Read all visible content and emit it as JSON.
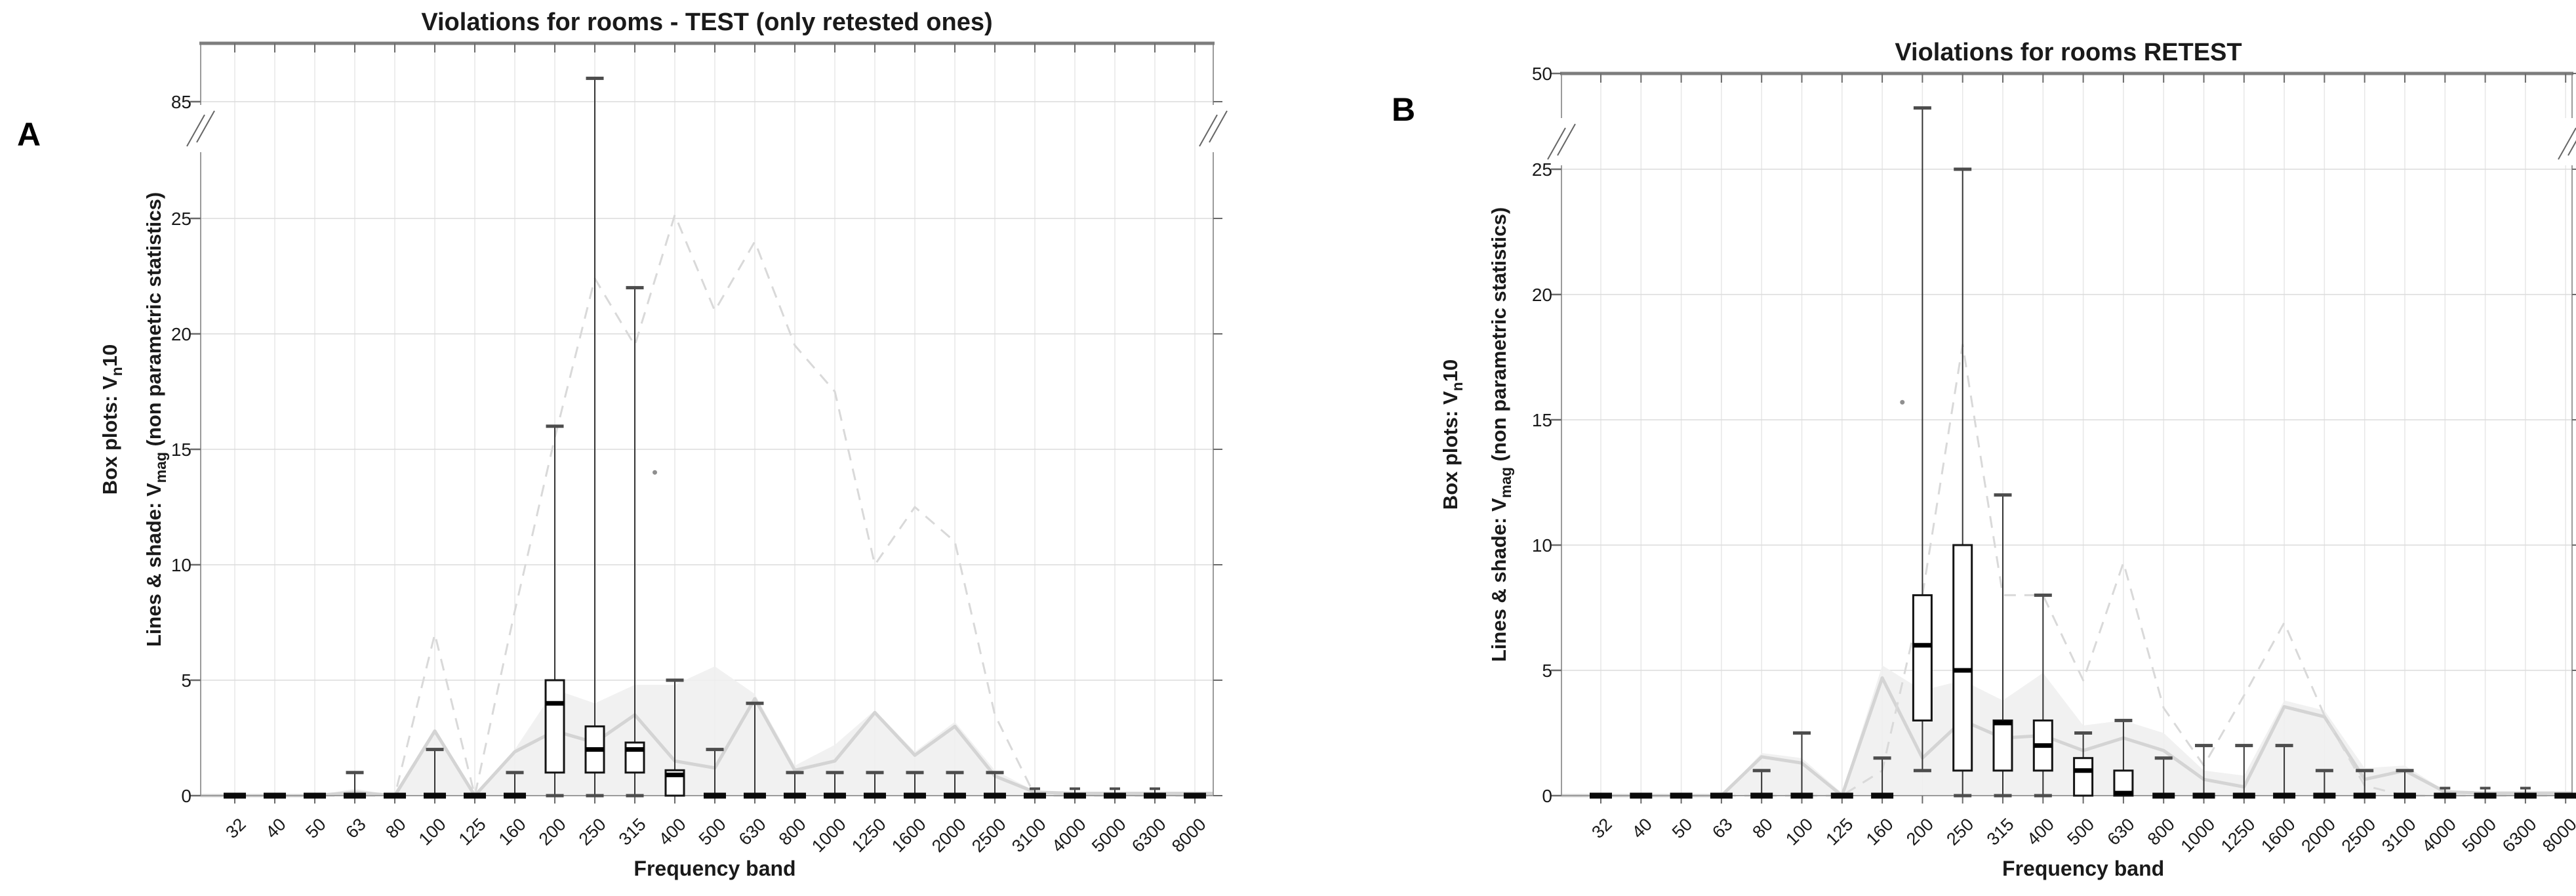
{
  "figure": {
    "background": "#ffffff",
    "panel_letters": [
      "A",
      "B"
    ]
  },
  "colors": {
    "box_stroke": "#141414",
    "median": "#000000",
    "whisker": "#333333",
    "whisker_cap": "#4d4d4d",
    "collapsed_bar": "#0a0a0a",
    "grid_h": "#dcdcdc",
    "grid_v": "#e7e7e7",
    "frame": "#9b9b9b",
    "frame_top": "#7d7d7d",
    "dashed_line": "#d9d9d9",
    "solid_line": "#d4d4d4",
    "shade_fill": "#efefef",
    "tick": "#6a6a6a",
    "text": "#1a1a1a",
    "outlier": "#8f8f8f",
    "break_mark": "#666666"
  },
  "chart_data": [
    {
      "panel": "A",
      "type": "boxplot-with-lines",
      "title": "Violations for rooms - TEST (only retested ones)",
      "xlabel": "Frequency band",
      "ylabel_line1": {
        "pre": "Box plots: V",
        "sub": "n",
        "post": "10"
      },
      "ylabel_line2": {
        "pre": "Lines & shade: V",
        "sub": "mag",
        "post": " (non parametric statistics)"
      },
      "y_ticks": [
        0,
        5,
        10,
        15,
        20,
        25,
        85
      ],
      "y_axis_break": {
        "between": [
          25,
          85
        ]
      },
      "grid": true,
      "categories": [
        "32",
        "40",
        "50",
        "63",
        "80",
        "100",
        "125",
        "160",
        "200",
        "250",
        "315",
        "400",
        "500",
        "630",
        "800",
        "1000",
        "1250",
        "1600",
        "2000",
        "2500",
        "3100",
        "4000",
        "5000",
        "6300",
        "8000"
      ],
      "boxes": [
        {
          "band": "32",
          "low": 0,
          "q1": 0,
          "med": 0,
          "q3": 0,
          "high": 0
        },
        {
          "band": "40",
          "low": 0,
          "q1": 0,
          "med": 0,
          "q3": 0,
          "high": 0
        },
        {
          "band": "50",
          "low": 0,
          "q1": 0,
          "med": 0,
          "q3": 0,
          "high": 0
        },
        {
          "band": "63",
          "low": 0,
          "q1": 0,
          "med": 0,
          "q3": 0,
          "high": 1
        },
        {
          "band": "80",
          "low": 0,
          "q1": 0,
          "med": 0,
          "q3": 0,
          "high": 0
        },
        {
          "band": "100",
          "low": 0,
          "q1": 0,
          "med": 0,
          "q3": 0,
          "high": 2
        },
        {
          "band": "125",
          "low": 0,
          "q1": 0,
          "med": 0,
          "q3": 0,
          "high": 0
        },
        {
          "band": "160",
          "low": 0,
          "q1": 0,
          "med": 0,
          "q3": 0,
          "high": 1
        },
        {
          "band": "200",
          "low": 0,
          "q1": 1,
          "med": 4,
          "q3": 5,
          "high": 16
        },
        {
          "band": "250",
          "low": 0,
          "q1": 1,
          "med": 2,
          "q3": 3,
          "high": 97
        },
        {
          "band": "315",
          "low": 0,
          "q1": 1,
          "med": 2,
          "q3": 2.3,
          "high": 22
        },
        {
          "band": "400",
          "low": 0,
          "q1": 0,
          "med": 0.9,
          "q3": 1.1,
          "high": 5
        },
        {
          "band": "500",
          "low": 0,
          "q1": 0,
          "med": 0,
          "q3": 0,
          "high": 2
        },
        {
          "band": "630",
          "low": 0,
          "q1": 0,
          "med": 0,
          "q3": 0,
          "high": 4
        },
        {
          "band": "800",
          "low": 0,
          "q1": 0,
          "med": 0,
          "q3": 0,
          "high": 1
        },
        {
          "band": "1000",
          "low": 0,
          "q1": 0,
          "med": 0,
          "q3": 0,
          "high": 1
        },
        {
          "band": "1250",
          "low": 0,
          "q1": 0,
          "med": 0,
          "q3": 0,
          "high": 1
        },
        {
          "band": "1600",
          "low": 0,
          "q1": 0,
          "med": 0,
          "q3": 0,
          "high": 1
        },
        {
          "band": "2000",
          "low": 0,
          "q1": 0,
          "med": 0,
          "q3": 0,
          "high": 1
        },
        {
          "band": "2500",
          "low": 0,
          "q1": 0,
          "med": 0,
          "q3": 0,
          "high": 1
        },
        {
          "band": "3100",
          "low": 0,
          "q1": 0,
          "med": 0,
          "q3": 0,
          "high": 0.3
        },
        {
          "band": "4000",
          "low": 0,
          "q1": 0,
          "med": 0,
          "q3": 0,
          "high": 0.3
        },
        {
          "band": "5000",
          "low": 0,
          "q1": 0,
          "med": 0,
          "q3": 0,
          "high": 0.3
        },
        {
          "band": "6300",
          "low": 0,
          "q1": 0,
          "med": 0,
          "q3": 0,
          "high": 0.3
        },
        {
          "band": "8000",
          "low": 0,
          "q1": 0,
          "med": 0,
          "q3": 0,
          "high": 0
        }
      ],
      "dashed_line_max": [
        0,
        0,
        0,
        0,
        0,
        7,
        0,
        8,
        15.5,
        22.4,
        19.5,
        26.8,
        21,
        24,
        19.5,
        17.5,
        10,
        12.5,
        11,
        3.5,
        0,
        0,
        0,
        0,
        0
      ],
      "solid_line_median": [
        0,
        0,
        0,
        0.15,
        0,
        2.8,
        0,
        1.9,
        2.8,
        2.3,
        3.5,
        1.5,
        1.2,
        4.2,
        1.1,
        1.5,
        3.6,
        1.75,
        3.0,
        0.85,
        0.15,
        0.1,
        0.1,
        0.1,
        0.1
      ],
      "shade_upper": [
        0,
        0,
        0,
        0.3,
        0,
        2.9,
        0.1,
        2.0,
        4.6,
        4.0,
        4.8,
        4.8,
        5.6,
        4.4,
        1.3,
        2.2,
        3.7,
        1.9,
        3.2,
        1.1,
        0.2,
        0.15,
        0.15,
        0.15,
        0.1
      ],
      "outlier": {
        "between_bands": [
          "315",
          "400"
        ],
        "value": 14
      }
    },
    {
      "panel": "B",
      "type": "boxplot-with-lines",
      "title": "Violations for rooms RETEST",
      "xlabel": "Frequency band",
      "ylabel_line1": {
        "pre": "Box plots: V",
        "sub": "n",
        "post": "10"
      },
      "ylabel_line2": {
        "pre": "Lines & shade: V",
        "sub": "mag",
        "post": " (non parametric statistics)"
      },
      "y_ticks": [
        0,
        5,
        10,
        15,
        20,
        25,
        50
      ],
      "y_axis_break": {
        "between": [
          25,
          50
        ]
      },
      "grid": true,
      "categories": [
        "32",
        "40",
        "50",
        "63",
        "80",
        "100",
        "125",
        "160",
        "200",
        "250",
        "315",
        "400",
        "500",
        "630",
        "800",
        "1000",
        "1250",
        "1600",
        "2000",
        "2500",
        "3100",
        "4000",
        "5000",
        "6300",
        "8000"
      ],
      "boxes": [
        {
          "band": "32",
          "low": 0,
          "q1": 0,
          "med": 0,
          "q3": 0,
          "high": 0
        },
        {
          "band": "40",
          "low": 0,
          "q1": 0,
          "med": 0,
          "q3": 0,
          "high": 0
        },
        {
          "band": "50",
          "low": 0,
          "q1": 0,
          "med": 0,
          "q3": 0,
          "high": 0
        },
        {
          "band": "63",
          "low": 0,
          "q1": 0,
          "med": 0,
          "q3": 0,
          "high": 0
        },
        {
          "band": "80",
          "low": 0,
          "q1": 0,
          "med": 0,
          "q3": 0,
          "high": 1
        },
        {
          "band": "100",
          "low": 0,
          "q1": 0,
          "med": 0,
          "q3": 0,
          "high": 2.5
        },
        {
          "band": "125",
          "low": 0,
          "q1": 0,
          "med": 0,
          "q3": 0,
          "high": 0
        },
        {
          "band": "160",
          "low": 0,
          "q1": 0,
          "med": 0,
          "q3": 0,
          "high": 1.5
        },
        {
          "band": "200",
          "low": 1,
          "q1": 3,
          "med": 6,
          "q3": 8,
          "high": 41
        },
        {
          "band": "250",
          "low": 0,
          "q1": 1,
          "med": 5,
          "q3": 10,
          "high": 25
        },
        {
          "band": "315",
          "low": 0,
          "q1": 1,
          "med": 2.9,
          "q3": 3,
          "high": 12
        },
        {
          "band": "400",
          "low": 0,
          "q1": 1,
          "med": 2,
          "q3": 3,
          "high": 8
        },
        {
          "band": "500",
          "low": 0,
          "q1": 0,
          "med": 1,
          "q3": 1.5,
          "high": 2.5
        },
        {
          "band": "630",
          "low": 0,
          "q1": 0,
          "med": 0.1,
          "q3": 1,
          "high": 3
        },
        {
          "band": "800",
          "low": 0,
          "q1": 0,
          "med": 0,
          "q3": 0,
          "high": 1.5
        },
        {
          "band": "1000",
          "low": 0,
          "q1": 0,
          "med": 0,
          "q3": 0,
          "high": 2
        },
        {
          "band": "1250",
          "low": 0,
          "q1": 0,
          "med": 0,
          "q3": 0,
          "high": 2
        },
        {
          "band": "1600",
          "low": 0,
          "q1": 0,
          "med": 0,
          "q3": 0,
          "high": 2
        },
        {
          "band": "2000",
          "low": 0,
          "q1": 0,
          "med": 0,
          "q3": 0,
          "high": 1
        },
        {
          "band": "2500",
          "low": 0,
          "q1": 0,
          "med": 0,
          "q3": 0,
          "high": 1
        },
        {
          "band": "3100",
          "low": 0,
          "q1": 0,
          "med": 0,
          "q3": 0,
          "high": 1
        },
        {
          "band": "4000",
          "low": 0,
          "q1": 0,
          "med": 0,
          "q3": 0,
          "high": 0.3
        },
        {
          "band": "5000",
          "low": 0,
          "q1": 0,
          "med": 0,
          "q3": 0,
          "high": 0.3
        },
        {
          "band": "6300",
          "low": 0,
          "q1": 0,
          "med": 0,
          "q3": 0,
          "high": 0.3
        },
        {
          "band": "8000",
          "low": 0,
          "q1": 0,
          "med": 0,
          "q3": 0,
          "high": 0
        }
      ],
      "dashed_line_max": [
        0,
        0,
        0,
        0,
        0,
        0,
        0,
        1,
        8,
        18,
        8,
        8,
        4.6,
        9.3,
        3.5,
        1.2,
        4,
        6.9,
        3.2,
        0.4,
        0,
        0,
        0,
        0,
        0
      ],
      "solid_line_median": [
        0,
        0,
        0,
        0,
        1.55,
        1.3,
        0,
        4.7,
        1.5,
        3.0,
        2.3,
        2.4,
        1.8,
        2.3,
        1.8,
        0.65,
        0.35,
        3.55,
        3.15,
        0.65,
        1.0,
        0.15,
        0.1,
        0.1,
        0.1
      ],
      "shade_upper": [
        0,
        0,
        0,
        0,
        1.7,
        1.5,
        0.1,
        5.2,
        4.2,
        4.6,
        3.8,
        4.9,
        2.8,
        3.0,
        2.5,
        1.0,
        0.8,
        3.8,
        3.4,
        1.1,
        1.2,
        0.2,
        0.15,
        0.15,
        0.1
      ],
      "outlier": {
        "between_bands": [
          "160",
          "200"
        ],
        "value": 15.7
      }
    }
  ]
}
